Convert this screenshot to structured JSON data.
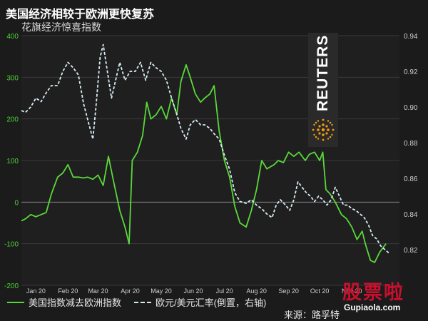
{
  "title": "美国经济相较于欧洲更快复苏",
  "subtitle": "花旗经济惊喜指数",
  "source": "来源：路孚特",
  "branding": {
    "name": "REUTERS",
    "logo_icon": "reuters-dot-logo"
  },
  "watermark": {
    "text": "股票啦",
    "domain": "Gupiaola.com"
  },
  "colors": {
    "background": "#1b1b1b",
    "us_series": "#5ad83a",
    "fx_series": "#d7ecf2",
    "grid": "#3a3a3a",
    "left_axis": "#4cd137"
  },
  "chart_data": {
    "type": "line",
    "title": "美国经济相较于欧洲更快复苏",
    "subtitle": "花旗经济惊喜指数",
    "x_axis": {
      "type": "date",
      "ticks": [
        "Jan 20",
        "Feb 20",
        "Mar 20",
        "Apr 20",
        "May 20",
        "Jun 20",
        "Jul 20",
        "Aug 20",
        "Sep 20",
        "Oct 20",
        "Nov 20"
      ]
    },
    "y_left": {
      "range": [
        -200,
        400
      ],
      "ticks": [
        "-200",
        "-100",
        "0",
        "100",
        "200",
        "300",
        "400"
      ]
    },
    "y_right": {
      "range": [
        0.8,
        0.94
      ],
      "ticks": [
        "0.82",
        "0.84",
        "0.86",
        "0.88",
        "0.90",
        "0.92",
        "0.94"
      ],
      "inverted": false
    },
    "series": [
      {
        "name": "美国指数减去欧洲指数",
        "axis": "left",
        "color": "#5ad83a",
        "style": "solid",
        "points": [
          [
            "2020-01-01",
            -45
          ],
          [
            "2020-01-05",
            -40
          ],
          [
            "2020-01-10",
            -30
          ],
          [
            "2020-01-15",
            -35
          ],
          [
            "2020-01-20",
            -30
          ],
          [
            "2020-01-25",
            -25
          ],
          [
            "2020-01-30",
            20
          ],
          [
            "2020-02-05",
            60
          ],
          [
            "2020-02-10",
            70
          ],
          [
            "2020-02-15",
            90
          ],
          [
            "2020-02-20",
            60
          ],
          [
            "2020-02-25",
            60
          ],
          [
            "2020-03-01",
            58
          ],
          [
            "2020-03-05",
            60
          ],
          [
            "2020-03-10",
            55
          ],
          [
            "2020-03-15",
            65
          ],
          [
            "2020-03-20",
            40
          ],
          [
            "2020-03-25",
            110
          ],
          [
            "2020-03-30",
            50
          ],
          [
            "2020-04-05",
            -20
          ],
          [
            "2020-04-10",
            -60
          ],
          [
            "2020-04-14",
            -100
          ],
          [
            "2020-04-17",
            100
          ],
          [
            "2020-04-22",
            120
          ],
          [
            "2020-04-27",
            160
          ],
          [
            "2020-05-01",
            240
          ],
          [
            "2020-05-05",
            200
          ],
          [
            "2020-05-10",
            210
          ],
          [
            "2020-05-15",
            230
          ],
          [
            "2020-05-20",
            200
          ],
          [
            "2020-05-25",
            250
          ],
          [
            "2020-05-30",
            210
          ],
          [
            "2020-06-03",
            290
          ],
          [
            "2020-06-08",
            330
          ],
          [
            "2020-06-12",
            300
          ],
          [
            "2020-06-17",
            260
          ],
          [
            "2020-06-22",
            240
          ],
          [
            "2020-06-26",
            250
          ],
          [
            "2020-07-01",
            260
          ],
          [
            "2020-07-05",
            280
          ],
          [
            "2020-07-10",
            170
          ],
          [
            "2020-07-15",
            100
          ],
          [
            "2020-07-20",
            60
          ],
          [
            "2020-07-25",
            -10
          ],
          [
            "2020-07-30",
            -50
          ],
          [
            "2020-08-05",
            -60
          ],
          [
            "2020-08-10",
            -20
          ],
          [
            "2020-08-15",
            30
          ],
          [
            "2020-08-20",
            100
          ],
          [
            "2020-08-25",
            80
          ],
          [
            "2020-09-01",
            90
          ],
          [
            "2020-09-05",
            100
          ],
          [
            "2020-09-10",
            95
          ],
          [
            "2020-09-15",
            120
          ],
          [
            "2020-09-20",
            110
          ],
          [
            "2020-09-25",
            120
          ],
          [
            "2020-10-01",
            100
          ],
          [
            "2020-10-05",
            115
          ],
          [
            "2020-10-10",
            120
          ],
          [
            "2020-10-15",
            100
          ],
          [
            "2020-10-18",
            120
          ],
          [
            "2020-10-21",
            30
          ],
          [
            "2020-10-25",
            20
          ],
          [
            "2020-10-30",
            0
          ],
          [
            "2020-11-05",
            -30
          ],
          [
            "2020-11-10",
            -40
          ],
          [
            "2020-11-15",
            -60
          ],
          [
            "2020-11-20",
            -90
          ],
          [
            "2020-11-25",
            -70
          ],
          [
            "2020-11-28",
            -100
          ],
          [
            "2020-12-03",
            -140
          ],
          [
            "2020-12-07",
            -145
          ],
          [
            "2020-12-12",
            -120
          ],
          [
            "2020-12-15",
            -110
          ],
          [
            "2020-12-18",
            -100
          ]
        ]
      },
      {
        "name": "欧元/美元汇率(倒置，右轴)",
        "axis": "right",
        "color": "#d7ecf2",
        "style": "dashed",
        "points": [
          [
            "2020-01-01",
            0.898
          ],
          [
            "2020-01-05",
            0.897
          ],
          [
            "2020-01-10",
            0.9
          ],
          [
            "2020-01-15",
            0.905
          ],
          [
            "2020-01-20",
            0.903
          ],
          [
            "2020-01-25",
            0.908
          ],
          [
            "2020-01-30",
            0.912
          ],
          [
            "2020-02-05",
            0.912
          ],
          [
            "2020-02-10",
            0.92
          ],
          [
            "2020-02-15",
            0.925
          ],
          [
            "2020-02-20",
            0.922
          ],
          [
            "2020-02-25",
            0.918
          ],
          [
            "2020-03-01",
            0.902
          ],
          [
            "2020-03-05",
            0.893
          ],
          [
            "2020-03-10",
            0.882
          ],
          [
            "2020-03-13",
            0.9
          ],
          [
            "2020-03-17",
            0.928
          ],
          [
            "2020-03-20",
            0.935
          ],
          [
            "2020-03-24",
            0.92
          ],
          [
            "2020-03-28",
            0.905
          ],
          [
            "2020-04-01",
            0.915
          ],
          [
            "2020-04-05",
            0.925
          ],
          [
            "2020-04-10",
            0.915
          ],
          [
            "2020-04-15",
            0.92
          ],
          [
            "2020-04-20",
            0.92
          ],
          [
            "2020-04-25",
            0.925
          ],
          [
            "2020-04-30",
            0.915
          ],
          [
            "2020-05-05",
            0.925
          ],
          [
            "2020-05-10",
            0.922
          ],
          [
            "2020-05-15",
            0.92
          ],
          [
            "2020-05-20",
            0.915
          ],
          [
            "2020-05-25",
            0.905
          ],
          [
            "2020-05-30",
            0.896
          ],
          [
            "2020-06-03",
            0.888
          ],
          [
            "2020-06-08",
            0.882
          ],
          [
            "2020-06-12",
            0.89
          ],
          [
            "2020-06-17",
            0.893
          ],
          [
            "2020-06-22",
            0.89
          ],
          [
            "2020-06-26",
            0.89
          ],
          [
            "2020-07-01",
            0.888
          ],
          [
            "2020-07-05",
            0.885
          ],
          [
            "2020-07-10",
            0.882
          ],
          [
            "2020-07-15",
            0.873
          ],
          [
            "2020-07-20",
            0.865
          ],
          [
            "2020-07-25",
            0.852
          ],
          [
            "2020-07-30",
            0.847
          ],
          [
            "2020-08-05",
            0.846
          ],
          [
            "2020-08-10",
            0.848
          ],
          [
            "2020-08-15",
            0.845
          ],
          [
            "2020-08-20",
            0.843
          ],
          [
            "2020-08-25",
            0.84
          ],
          [
            "2020-08-30",
            0.838
          ],
          [
            "2020-09-03",
            0.845
          ],
          [
            "2020-09-07",
            0.848
          ],
          [
            "2020-09-12",
            0.845
          ],
          [
            "2020-09-16",
            0.842
          ],
          [
            "2020-09-20",
            0.848
          ],
          [
            "2020-09-24",
            0.858
          ],
          [
            "2020-09-28",
            0.855
          ],
          [
            "2020-10-02",
            0.852
          ],
          [
            "2020-10-06",
            0.85
          ],
          [
            "2020-10-10",
            0.847
          ],
          [
            "2020-10-14",
            0.85
          ],
          [
            "2020-10-18",
            0.848
          ],
          [
            "2020-10-22",
            0.845
          ],
          [
            "2020-10-26",
            0.848
          ],
          [
            "2020-10-30",
            0.855
          ],
          [
            "2020-11-03",
            0.85
          ],
          [
            "2020-11-07",
            0.845
          ],
          [
            "2020-11-11",
            0.845
          ],
          [
            "2020-11-15",
            0.843
          ],
          [
            "2020-11-19",
            0.842
          ],
          [
            "2020-11-23",
            0.84
          ],
          [
            "2020-11-27",
            0.838
          ],
          [
            "2020-12-01",
            0.834
          ],
          [
            "2020-12-05",
            0.828
          ],
          [
            "2020-12-09",
            0.826
          ],
          [
            "2020-12-13",
            0.822
          ],
          [
            "2020-12-17",
            0.82
          ],
          [
            "2020-12-21",
            0.818
          ]
        ]
      }
    ],
    "legend": {
      "placement": "bottom-left"
    },
    "grid": true
  }
}
